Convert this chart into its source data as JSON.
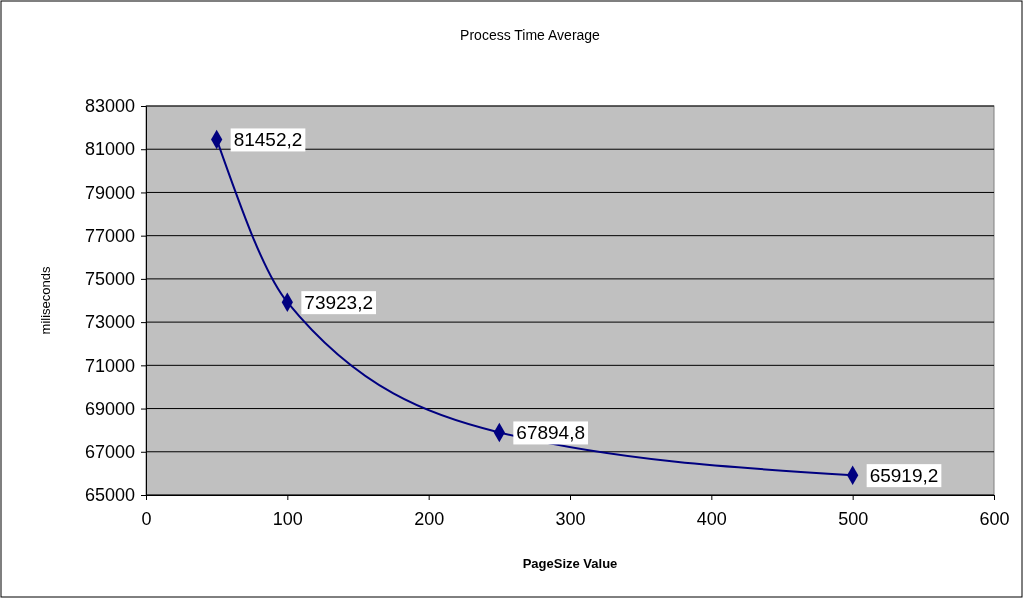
{
  "chart_data": {
    "type": "line",
    "title": "Process Time Average",
    "xlabel": "PageSize Value",
    "ylabel": "miliseconds",
    "x": [
      50,
      100,
      250,
      500
    ],
    "series": [
      {
        "color": "#000080",
        "values": [
          81452.2,
          73923.2,
          67894.8,
          65919.2
        ],
        "value_labels": [
          "81452,2",
          "73923,2",
          "67894,8",
          "65919,2"
        ]
      }
    ],
    "xlim": [
      0,
      600
    ],
    "xticks": [
      0,
      100,
      200,
      300,
      400,
      500,
      600
    ],
    "ylim": [
      65000,
      83000
    ],
    "yticks": [
      65000,
      67000,
      69000,
      71000,
      73000,
      75000,
      77000,
      79000,
      81000,
      83000
    ],
    "grid": "y",
    "marker": "diamond",
    "line_style": "solid"
  }
}
